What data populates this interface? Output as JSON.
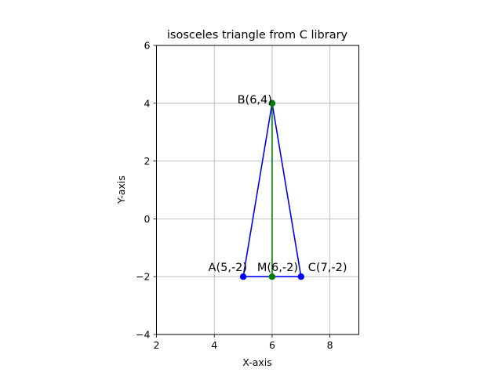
{
  "chart_data": {
    "type": "scatter",
    "title": "isosceles triangle from C library",
    "xlabel": "X-axis",
    "ylabel": "Y-axis",
    "xlim": [
      2,
      9
    ],
    "ylim": [
      -4,
      6
    ],
    "xticks": [
      2,
      4,
      6,
      8
    ],
    "yticks": [
      -4,
      -2,
      0,
      2,
      4,
      6
    ],
    "xtick_labels": [
      "2",
      "4",
      "6",
      "8"
    ],
    "ytick_labels": [
      "−4",
      "−2",
      "0",
      "2",
      "4",
      "6"
    ],
    "grid": true,
    "triangle": {
      "color": "#0000ff",
      "vertices": [
        {
          "label": "A(5,-2)",
          "x": 5,
          "y": -2
        },
        {
          "label": "B(6,4)",
          "x": 6,
          "y": 4
        },
        {
          "label": "C(7,-2)",
          "x": 7,
          "y": -2
        }
      ]
    },
    "median": {
      "color": "#008000",
      "from": {
        "label": "B(6,4)",
        "x": 6,
        "y": 4
      },
      "to": {
        "label": "M(6,-2)",
        "x": 6,
        "y": -2
      }
    }
  }
}
